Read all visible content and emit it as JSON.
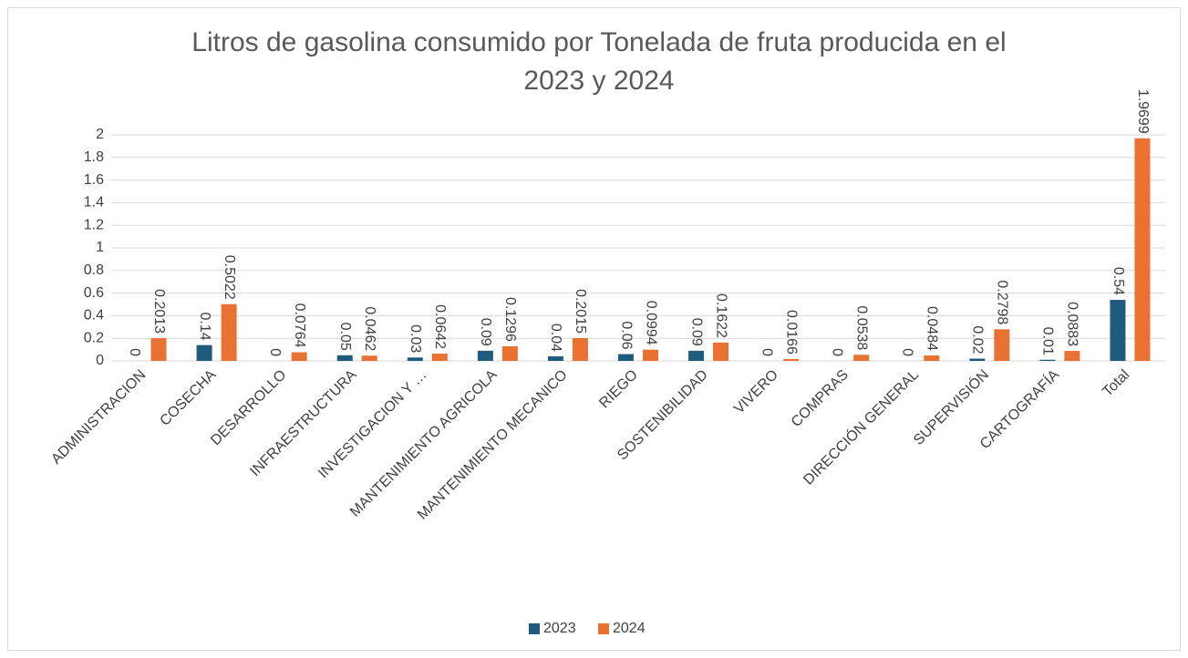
{
  "chart_data": {
    "type": "bar",
    "title": "Litros de gasolina consumido por Tonelada de fruta producida en el 2023 y 2024",
    "categories": [
      "ADMINISTRACION",
      "COSECHA",
      "DESARROLLO",
      "INFRAESTRUCTURA",
      "INVESTIGACION Y …",
      "MANTENIMIENTO AGRICOLA",
      "MANTENIMIENTO MECANICO",
      "RIEGO",
      "SOSTENIBILIDAD",
      "VIVERO",
      "COMPRAS",
      "DIRECCIÓN GENERAL",
      "SUPERVISIÓN",
      "CARTOGRAFÍA",
      "Total"
    ],
    "series": [
      {
        "name": "2023",
        "color": "#1e5b7d",
        "values": [
          0,
          0.14,
          0,
          0.05,
          0.03,
          0.09,
          0.04,
          0.06,
          0.09,
          0,
          0,
          0,
          0.02,
          0.01,
          0.54
        ]
      },
      {
        "name": "2024",
        "color": "#e97132",
        "values": [
          0.2013,
          0.5022,
          0.0764,
          0.0462,
          0.0642,
          0.1296,
          0.2015,
          0.0994,
          0.1622,
          0.0166,
          0.0538,
          0.0484,
          0.2798,
          0.0883,
          1.9699
        ]
      }
    ],
    "ylim": [
      0,
      2
    ],
    "yticks": [
      0,
      0.2,
      0.4,
      0.6,
      0.8,
      1,
      1.2,
      1.4,
      1.6,
      1.8,
      2
    ],
    "grid": true,
    "legend": "bottom"
  }
}
